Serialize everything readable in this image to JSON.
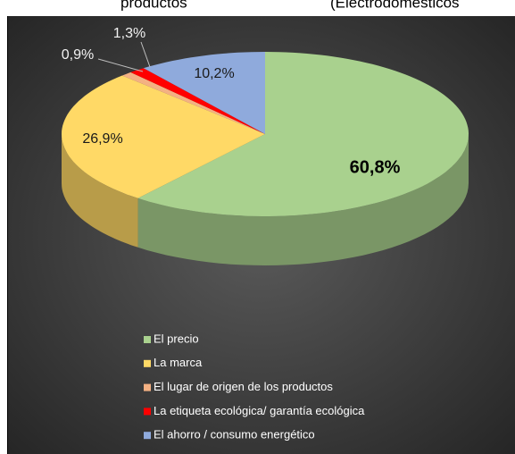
{
  "chart_data": {
    "type": "pie",
    "header_fragments": [
      "productos",
      "(Electrodomésticos"
    ],
    "categories": [
      "El precio",
      "La marca",
      "El lugar de origen de los productos",
      "La etiqueta ecológica/ garantía ecológica",
      "El ahorro / consumo energético"
    ],
    "values": [
      60.8,
      26.9,
      0.9,
      1.3,
      10.2
    ],
    "value_labels": [
      "60,8%",
      "26,9%",
      "0,9%",
      "1,3%",
      "10,2%"
    ],
    "colors": [
      "#a9d18e",
      "#ffd966",
      "#f4b183",
      "#ff0000",
      "#8faadc"
    ],
    "three_d": true,
    "legend": "bottom"
  }
}
